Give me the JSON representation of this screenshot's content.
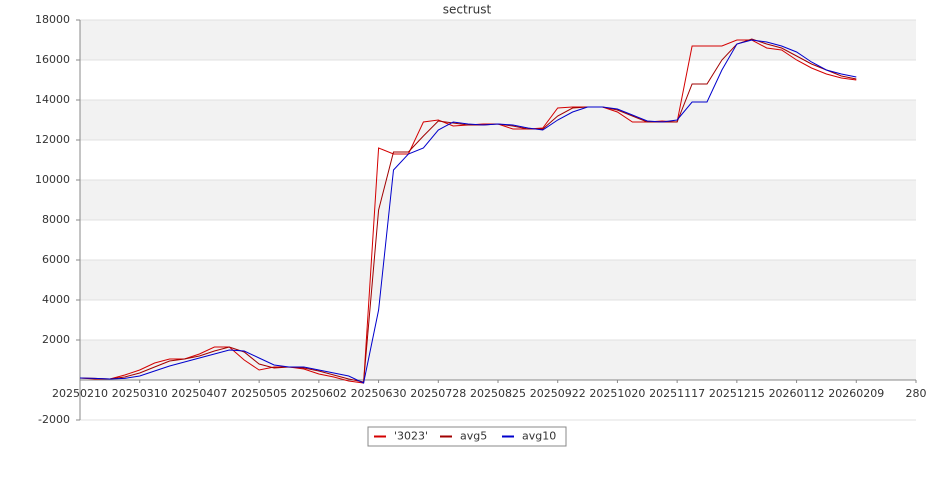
{
  "chart_data": {
    "type": "line",
    "title": "sectrust",
    "x": [
      0,
      5,
      10,
      15,
      20,
      25,
      30,
      35,
      40,
      45,
      50,
      55,
      60,
      65,
      70,
      75,
      80,
      85,
      90,
      95,
      100,
      105,
      110,
      115,
      120,
      125,
      130,
      135,
      140,
      145,
      150,
      155,
      160,
      165,
      170,
      175,
      180,
      185,
      190,
      195,
      200,
      205,
      210,
      215,
      220,
      225,
      230,
      235,
      240,
      245,
      250,
      255,
      260
    ],
    "series": [
      {
        "name": "'3023'",
        "color": "#d40000",
        "values": [
          100,
          50,
          50,
          250,
          500,
          850,
          1050,
          1050,
          1300,
          1650,
          1650,
          1000,
          500,
          650,
          650,
          550,
          300,
          150,
          -50,
          -150,
          11600,
          11300,
          11300,
          12900,
          13000,
          12700,
          12750,
          12800,
          12800,
          12550,
          12550,
          12600,
          13600,
          13650,
          13650,
          13650,
          13400,
          12900,
          12900,
          12950,
          12900,
          16700,
          16700,
          16700,
          17000,
          17000,
          16600,
          16500,
          16000,
          15600,
          15300,
          15100,
          15000
        ]
      },
      {
        "name": "avg5",
        "color": "#a00000",
        "values": [
          100,
          80,
          50,
          150,
          350,
          650,
          950,
          1050,
          1200,
          1450,
          1650,
          1400,
          800,
          600,
          650,
          600,
          450,
          250,
          50,
          -100,
          8500,
          11400,
          11400,
          12200,
          12950,
          12850,
          12750,
          12750,
          12800,
          12700,
          12550,
          12550,
          13200,
          13600,
          13650,
          13650,
          13500,
          13200,
          12900,
          12900,
          12900,
          14800,
          14800,
          16000,
          16800,
          17050,
          16800,
          16600,
          16200,
          15800,
          15500,
          15200,
          15050
        ]
      },
      {
        "name": "avg10",
        "color": "#0000cc",
        "values": [
          100,
          80,
          50,
          80,
          200,
          450,
          700,
          900,
          1100,
          1300,
          1500,
          1450,
          1100,
          750,
          650,
          650,
          500,
          350,
          200,
          -150,
          3500,
          10500,
          11300,
          11600,
          12500,
          12900,
          12800,
          12750,
          12800,
          12750,
          12600,
          12500,
          13000,
          13400,
          13650,
          13650,
          13550,
          13250,
          12950,
          12900,
          13000,
          13900,
          13900,
          15500,
          16800,
          17000,
          16900,
          16700,
          16400,
          15900,
          15500,
          15300,
          15150
        ]
      }
    ],
    "xlim": [
      0,
      280
    ],
    "xticks": [
      {
        "value": 0,
        "label": "20250210"
      },
      {
        "value": 20,
        "label": "20250310"
      },
      {
        "value": 40,
        "label": "20250407"
      },
      {
        "value": 60,
        "label": "20250505"
      },
      {
        "value": 80,
        "label": "20250602"
      },
      {
        "value": 100,
        "label": "20250630"
      },
      {
        "value": 120,
        "label": "20250728"
      },
      {
        "value": 140,
        "label": "20250825"
      },
      {
        "value": 160,
        "label": "20250922"
      },
      {
        "value": 180,
        "label": "20251020"
      },
      {
        "value": 200,
        "label": "20251117"
      },
      {
        "value": 220,
        "label": "20251215"
      },
      {
        "value": 240,
        "label": "20260112"
      },
      {
        "value": 260,
        "label": "20260209"
      },
      280
    ],
    "ylim": [
      -2000,
      18000
    ],
    "yticks": [
      -2000,
      2000,
      4000,
      6000,
      8000,
      10000,
      12000,
      14000,
      16000,
      18000
    ],
    "grid": true,
    "legend": "bottom"
  }
}
